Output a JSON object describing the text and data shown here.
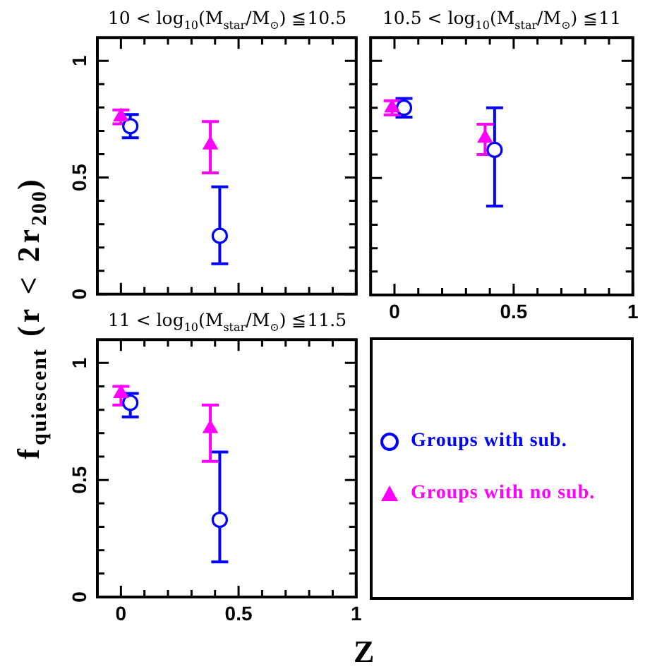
{
  "chart_data": [
    {
      "type": "scatter",
      "title": "10 < log$_{10}$(M$_{star}$/M$_{⊙}$) ≦10.5",
      "xlim": [
        -0.1,
        1
      ],
      "ylim": [
        0,
        1.1
      ],
      "xticks": [
        0,
        {
          "value": 0.1,
          "label": null
        },
        {
          "value": 0.2,
          "label": null
        },
        {
          "value": 0.3,
          "label": null
        },
        {
          "value": 0.4,
          "label": null
        },
        0.5,
        {
          "value": 0.6,
          "label": null
        },
        {
          "value": 0.7,
          "label": null
        },
        {
          "value": 0.8,
          "label": null
        },
        {
          "value": 0.9,
          "label": null
        },
        1
      ],
      "yticks": [
        0,
        {
          "value": 0.1,
          "label": null
        },
        {
          "value": 0.2,
          "label": null
        },
        {
          "value": 0.3,
          "label": null
        },
        {
          "value": 0.4,
          "label": null
        },
        0.5,
        {
          "value": 0.6,
          "label": null
        },
        {
          "value": 0.7,
          "label": null
        },
        {
          "value": 0.8,
          "label": null
        },
        {
          "value": 0.9,
          "label": null
        },
        1
      ],
      "tick_labels": "y",
      "series": [
        {
          "color": "#0000ff",
          "marker": "circle",
          "x": [
            0.04,
            0.42
          ],
          "values": [
            0.72,
            0.25
          ],
          "errors": [
            [
              0.67,
              0.77
            ],
            [
              0.13,
              0.46
            ]
          ]
        },
        {
          "color": "#ff00ff",
          "marker": "triangle",
          "x": [
            0,
            0.38
          ],
          "values": [
            0.76,
            0.64
          ],
          "errors": [
            [
              0.73,
              0.79
            ],
            [
              0.52,
              0.74
            ]
          ]
        }
      ]
    },
    {
      "type": "scatter",
      "title": "10.5 < log$_{10}$(M$_{star}$/M$_{⊙}$) ≦11",
      "xlim": [
        -0.1,
        1
      ],
      "ylim": [
        0,
        1.1
      ],
      "xticks": [
        0,
        {
          "value": 0.1,
          "label": null
        },
        {
          "value": 0.2,
          "label": null
        },
        {
          "value": 0.3,
          "label": null
        },
        {
          "value": 0.4,
          "label": null
        },
        0.5,
        {
          "value": 0.6,
          "label": null
        },
        {
          "value": 0.7,
          "label": null
        },
        {
          "value": 0.8,
          "label": null
        },
        {
          "value": 0.9,
          "label": null
        },
        1
      ],
      "yticks": [
        0,
        {
          "value": 0.1,
          "label": null
        },
        {
          "value": 0.2,
          "label": null
        },
        {
          "value": 0.3,
          "label": null
        },
        {
          "value": 0.4,
          "label": null
        },
        0.5,
        {
          "value": 0.6,
          "label": null
        },
        {
          "value": 0.7,
          "label": null
        },
        {
          "value": 0.8,
          "label": null
        },
        {
          "value": 0.9,
          "label": null
        },
        1
      ],
      "tick_labels": "x",
      "series": [
        {
          "color": "#0000ff",
          "marker": "circle",
          "x": [
            0.04,
            0.42
          ],
          "values": [
            0.8,
            0.62
          ],
          "errors": [
            [
              0.76,
              0.84
            ],
            [
              0.38,
              0.8
            ]
          ]
        },
        {
          "color": "#ff00ff",
          "marker": "triangle",
          "x": [
            -0.01,
            0.38
          ],
          "values": [
            0.8,
            0.67
          ],
          "errors": [
            [
              0.77,
              0.83
            ],
            [
              0.6,
              0.73
            ]
          ]
        }
      ]
    },
    {
      "type": "scatter",
      "title": "11 < log$_{10}$(M$_{star}$/M$_{⊙}$) ≦11.5",
      "xlabel": "Z",
      "ylabel": "f$_{quiescent}$ (r < 2r$_{200}$)",
      "xlim": [
        -0.1,
        1
      ],
      "ylim": [
        0,
        1.1
      ],
      "xticks": [
        0,
        {
          "value": 0.1,
          "label": null
        },
        {
          "value": 0.2,
          "label": null
        },
        {
          "value": 0.3,
          "label": null
        },
        {
          "value": 0.4,
          "label": null
        },
        0.5,
        {
          "value": 0.6,
          "label": null
        },
        {
          "value": 0.7,
          "label": null
        },
        {
          "value": 0.8,
          "label": null
        },
        {
          "value": 0.9,
          "label": null
        },
        1
      ],
      "yticks": [
        0,
        {
          "value": 0.1,
          "label": null
        },
        {
          "value": 0.2,
          "label": null
        },
        {
          "value": 0.3,
          "label": null
        },
        {
          "value": 0.4,
          "label": null
        },
        0.5,
        {
          "value": 0.6,
          "label": null
        },
        {
          "value": 0.7,
          "label": null
        },
        {
          "value": 0.8,
          "label": null
        },
        {
          "value": 0.9,
          "label": null
        },
        1
      ],
      "legend": "right",
      "series": [
        {
          "name": "Groups with sub.",
          "color": "#0000ff",
          "marker": "circle",
          "x": [
            0.04,
            0.42
          ],
          "values": [
            0.83,
            0.33
          ],
          "errors": [
            [
              0.77,
              0.87
            ],
            [
              0.15,
              0.62
            ]
          ]
        },
        {
          "name": "Groups with no sub.",
          "color": "#ff00ff",
          "marker": "triangle",
          "x": [
            0,
            0.38
          ],
          "values": [
            0.87,
            0.72
          ],
          "errors": [
            [
              0.82,
              0.9
            ],
            [
              0.58,
              0.82
            ]
          ]
        }
      ]
    }
  ]
}
